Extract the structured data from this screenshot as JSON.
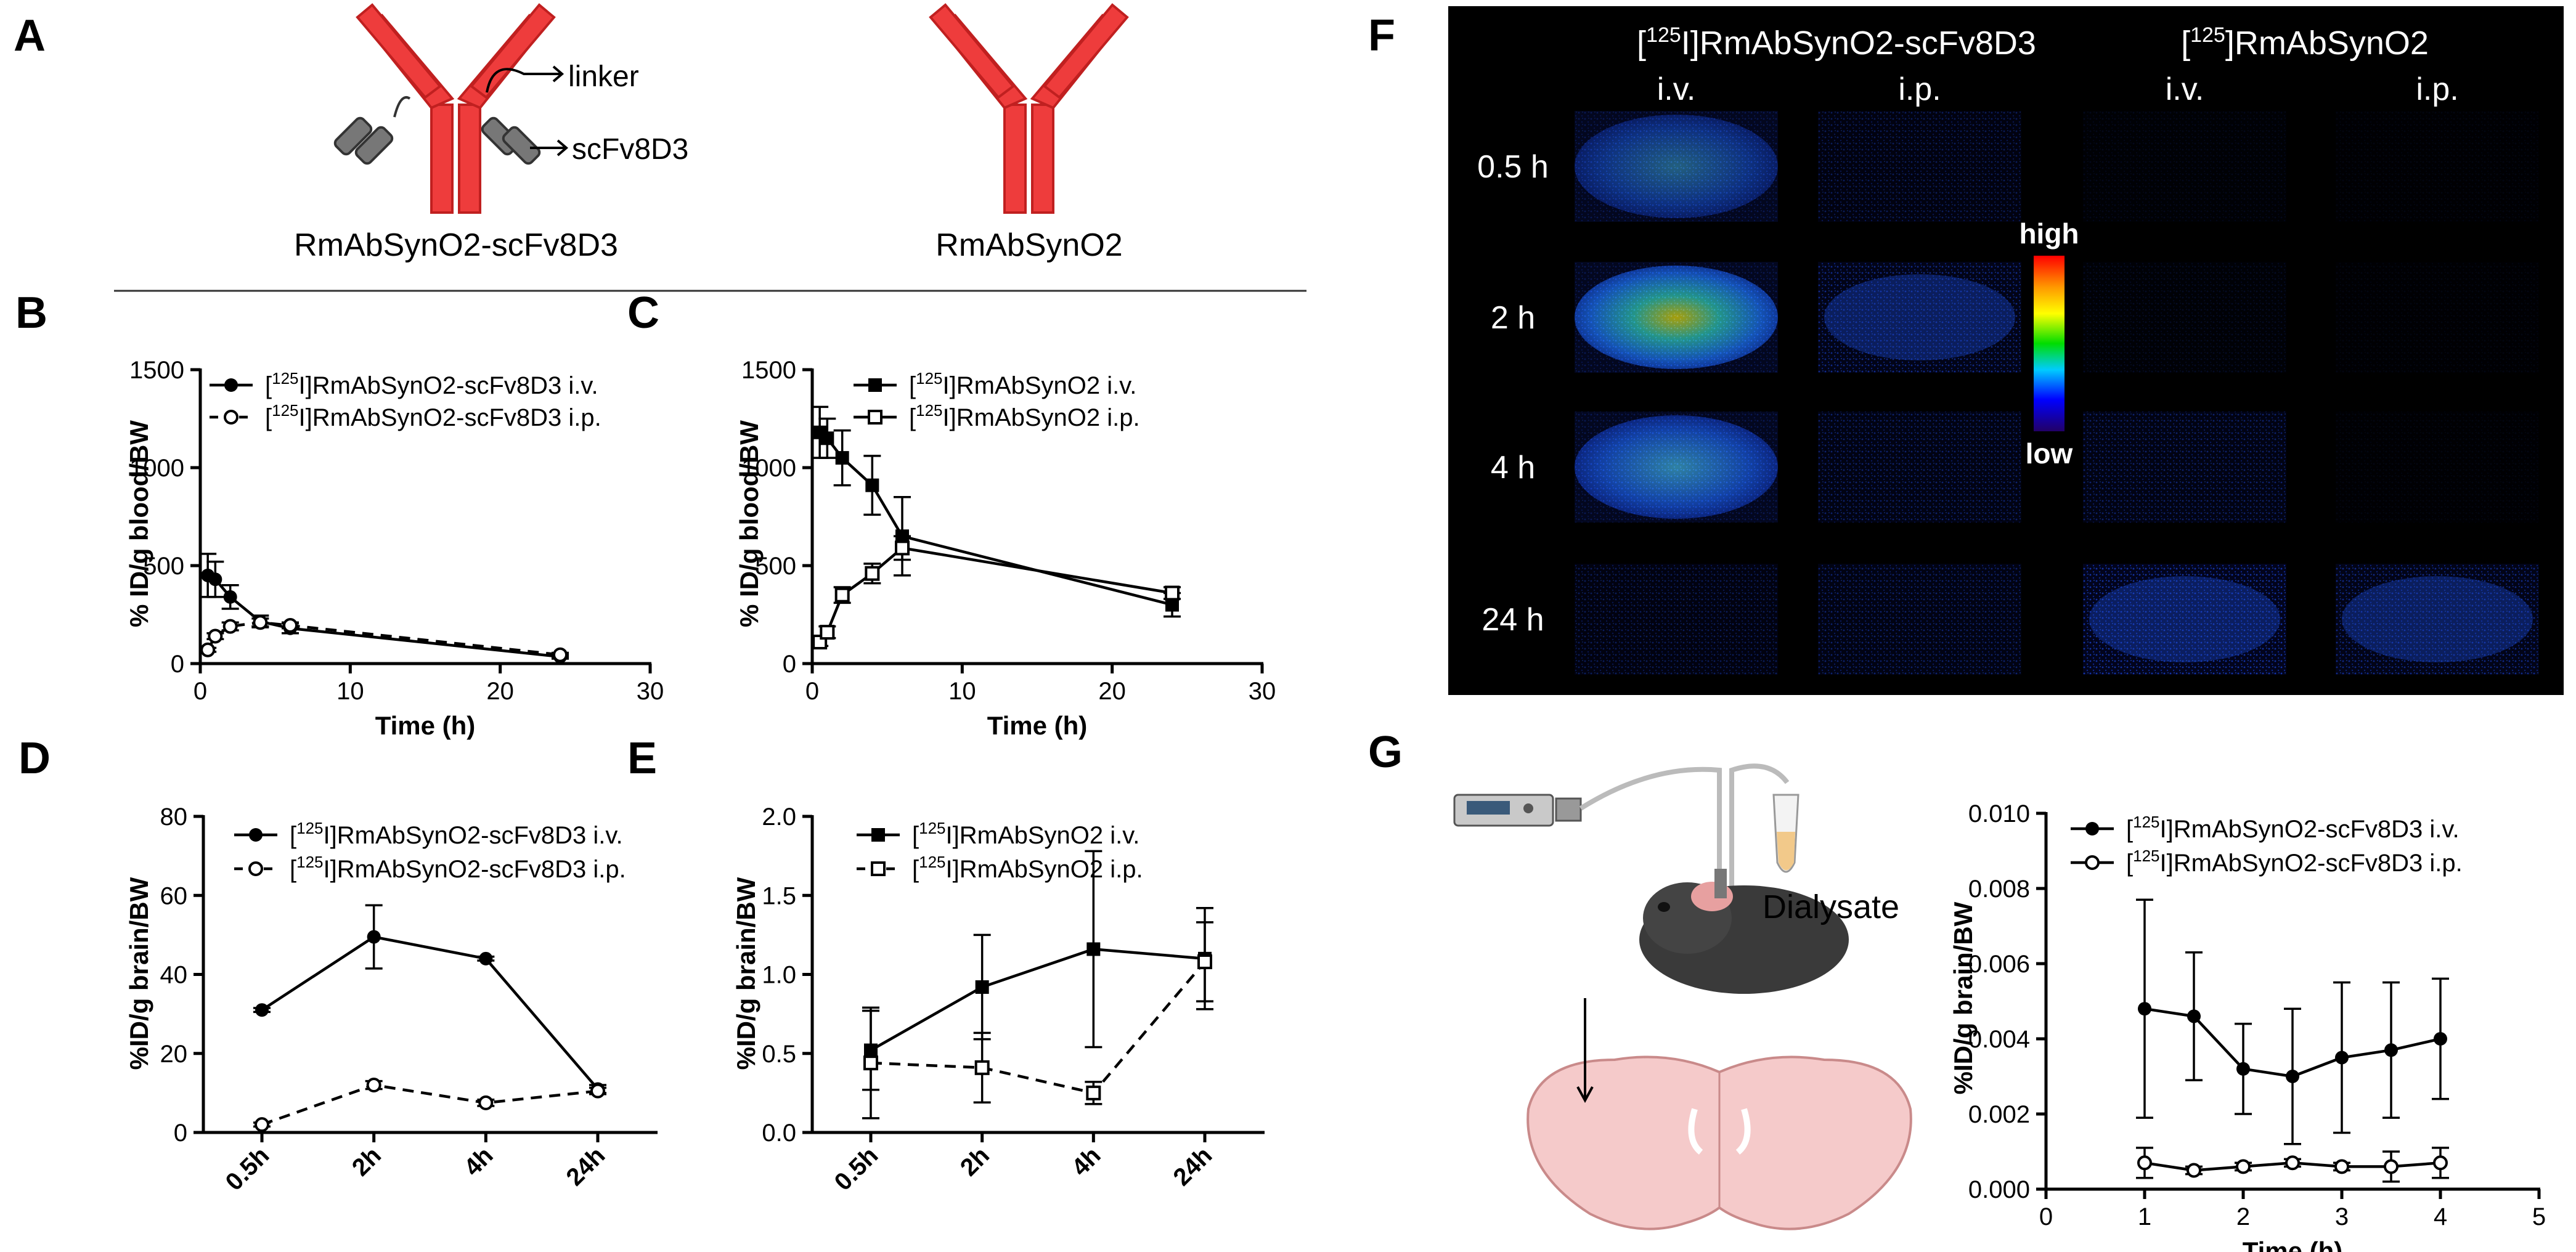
{
  "panels": {
    "A": {
      "label": "A",
      "linker": "linker",
      "scfv": "scFv8D3",
      "left_name": "RmAbSynO2-scFv8D3",
      "right_name": "RmAbSynO2",
      "colors": {
        "antibody": "#ee3c3c",
        "antibody_edge": "#c02020",
        "scfv": "#777777"
      }
    },
    "F": {
      "label": "F",
      "col_group1_pre": "[",
      "col_group1_sup": "125",
      "col_group1_post": "I]RmAbSynO2-scFv8D3",
      "col_group2_pre": "[",
      "col_group2_sup": "125",
      "col_group2_post": "]RmAbSynO2",
      "cols": [
        "i.v.",
        "i.p.",
        "i.v.",
        "i.p."
      ],
      "rows": [
        "0.5 h",
        "2 h",
        "4 h",
        "24 h"
      ],
      "scale_high": "high",
      "scale_low": "low",
      "intensity": [
        [
          0.45,
          0.1,
          0.03,
          0.02
        ],
        [
          0.85,
          0.15,
          0.04,
          0.02
        ],
        [
          0.7,
          0.12,
          0.12,
          0.02
        ],
        [
          0.1,
          0.12,
          0.18,
          0.15
        ]
      ],
      "colors": {
        "background": "#000000",
        "gradient": [
          "#ff0000",
          "#ff9900",
          "#ffff00",
          "#00dd00",
          "#00ccff",
          "#0000ff",
          "#220066"
        ]
      }
    },
    "G": {
      "label": "G",
      "dialysate": "Dialysate"
    }
  },
  "chart_data": [
    {
      "panel": "B",
      "type": "line",
      "xlabel": "Time (h)",
      "ylabel": "% ID/g blood/BW",
      "xlim": [
        0,
        30
      ],
      "ylim": [
        0,
        1500
      ],
      "xticks": [
        "0",
        "10",
        "20",
        "30"
      ],
      "yticks": [
        "0",
        "500",
        "1000",
        "1500"
      ],
      "legend_placement": "top-left",
      "series": [
        {
          "name_pre": "[",
          "name_sup": "125",
          "name_post": "I]RmAbSynO2-scFv8D3 i.v.",
          "marker": "circle-filled",
          "dashed": false,
          "x": [
            0.5,
            1,
            2,
            4,
            6,
            24
          ],
          "y": [
            450,
            430,
            340,
            215,
            180,
            35
          ],
          "err": [
            110,
            90,
            60,
            30,
            25,
            10
          ]
        },
        {
          "name_pre": "[",
          "name_sup": "125",
          "name_post": "I]RmAbSynO2-scFv8D3 i.p.",
          "marker": "circle-open",
          "dashed": true,
          "x": [
            0.5,
            1,
            2,
            4,
            6,
            24
          ],
          "y": [
            70,
            140,
            190,
            210,
            195,
            45
          ],
          "err": [
            10,
            15,
            20,
            20,
            15,
            10
          ]
        }
      ]
    },
    {
      "panel": "C",
      "type": "line",
      "xlabel": "Time (h)",
      "ylabel": "% ID/g blood/BW",
      "xlim": [
        0,
        30
      ],
      "ylim": [
        0,
        1500
      ],
      "xticks": [
        "0",
        "10",
        "20",
        "30"
      ],
      "yticks": [
        "0",
        "500",
        "1000",
        "1500"
      ],
      "legend_placement": "top-right",
      "series": [
        {
          "name_pre": "[",
          "name_sup": "125",
          "name_post": "I]RmAbSynO2 i.v.",
          "marker": "square-filled",
          "dashed": false,
          "x": [
            0.5,
            1,
            2,
            4,
            6,
            24
          ],
          "y": [
            1180,
            1150,
            1050,
            910,
            650,
            300
          ],
          "err": [
            130,
            100,
            140,
            150,
            200,
            60
          ]
        },
        {
          "name_pre": "[",
          "name_sup": "125",
          "name_post": "I]RmAbSynO2 i.p.",
          "marker": "square-open",
          "dashed": false,
          "x": [
            0.5,
            1,
            2,
            4,
            6,
            24
          ],
          "y": [
            110,
            160,
            350,
            460,
            590,
            360
          ],
          "err": [
            20,
            30,
            40,
            50,
            60,
            30
          ]
        }
      ]
    },
    {
      "panel": "D",
      "type": "line",
      "xlabel": "",
      "ylabel": "%ID/g brain/BW",
      "categories": [
        "0.5h",
        "2h",
        "4h",
        "24h"
      ],
      "ylim": [
        0,
        80
      ],
      "yticks": [
        "0",
        "20",
        "40",
        "60",
        "80"
      ],
      "legend_placement": "top-left",
      "series": [
        {
          "name_pre": "[",
          "name_sup": "125",
          "name_post": "I]RmAbSynO2-scFv8D3 i.v.",
          "marker": "circle-filled",
          "dashed": false,
          "values": [
            31,
            49.5,
            44,
            11
          ],
          "err": [
            0.5,
            8,
            0.5,
            1
          ]
        },
        {
          "name_pre": "[",
          "name_sup": "125",
          "name_post": "I]RmAbSynO2-scFv8D3 i.p.",
          "marker": "circle-open",
          "dashed": true,
          "values": [
            2,
            12,
            7.5,
            10.5
          ],
          "err": [
            0.5,
            1,
            0.8,
            0.8
          ]
        }
      ]
    },
    {
      "panel": "E",
      "type": "line",
      "xlabel": "",
      "ylabel": "%ID/g brain/BW",
      "categories": [
        "0.5h",
        "2h",
        "4h",
        "24h"
      ],
      "ylim": [
        0,
        2.0
      ],
      "yticks": [
        "0.0",
        "0.5",
        "1.0",
        "1.5",
        "2.0"
      ],
      "legend_placement": "top-left",
      "series": [
        {
          "name_pre": "[",
          "name_sup": "125",
          "name_post": "I]RmAbSynO2 i.v.",
          "marker": "square-filled",
          "dashed": false,
          "values": [
            0.52,
            0.92,
            1.16,
            1.1
          ],
          "err": [
            0.25,
            0.33,
            0.62,
            0.32
          ]
        },
        {
          "name_pre": "[",
          "name_sup": "125",
          "name_post": "I]RmAbSynO2 i.p.",
          "marker": "square-open",
          "dashed": true,
          "values": [
            0.44,
            0.41,
            0.25,
            1.08
          ],
          "err": [
            0.35,
            0.22,
            0.07,
            0.25
          ]
        }
      ]
    },
    {
      "panel": "G",
      "type": "line",
      "xlabel": "Time (h)",
      "ylabel": "%ID/g brain/BW",
      "xlim": [
        0,
        5
      ],
      "ylim": [
        0,
        0.01
      ],
      "xticks": [
        "0",
        "1",
        "2",
        "3",
        "4",
        "5"
      ],
      "yticks": [
        "0.000",
        "0.002",
        "0.004",
        "0.006",
        "0.008",
        "0.010"
      ],
      "legend_placement": "top-left",
      "series": [
        {
          "name_pre": "[",
          "name_sup": "125",
          "name_post": "I]RmAbSynO2-scFv8D3 i.v.",
          "marker": "circle-filled",
          "dashed": false,
          "x": [
            1,
            1.5,
            2,
            2.5,
            3,
            3.5,
            4
          ],
          "y": [
            0.0048,
            0.0046,
            0.0032,
            0.003,
            0.0035,
            0.0037,
            0.004
          ],
          "err": [
            0.0029,
            0.0017,
            0.0012,
            0.0018,
            0.002,
            0.0018,
            0.0016
          ]
        },
        {
          "name_pre": "[",
          "name_sup": "125",
          "name_post": "I]RmAbSynO2-scFv8D3 i.p.",
          "marker": "circle-open",
          "dashed": false,
          "x": [
            1,
            1.5,
            2,
            2.5,
            3,
            3.5,
            4
          ],
          "y": [
            0.0007,
            0.0005,
            0.0006,
            0.0007,
            0.0006,
            0.0006,
            0.0007
          ],
          "err": [
            0.0004,
            0.0001,
            0.0001,
            0.0001,
            0.0001,
            0.0004,
            0.0004
          ]
        }
      ]
    }
  ]
}
